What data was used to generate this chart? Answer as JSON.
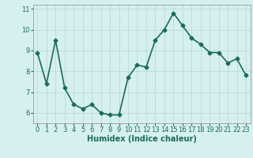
{
  "x": [
    0,
    1,
    2,
    3,
    4,
    5,
    6,
    7,
    8,
    9,
    10,
    11,
    12,
    13,
    14,
    15,
    16,
    17,
    18,
    19,
    20,
    21,
    22,
    23
  ],
  "y": [
    8.9,
    7.4,
    9.5,
    7.2,
    6.4,
    6.2,
    6.4,
    6.0,
    5.9,
    5.9,
    7.7,
    8.3,
    8.2,
    9.5,
    10.0,
    10.8,
    10.2,
    9.6,
    9.3,
    8.9,
    8.9,
    8.4,
    8.6,
    7.8
  ],
  "line_color": "#1a6b5a",
  "marker": "D",
  "marker_size": 2.5,
  "bg_color": "#d6f0ef",
  "grid_color": "#b8dbd9",
  "xlabel": "Humidex (Indice chaleur)",
  "ylim": [
    5.5,
    11.2
  ],
  "xlim": [
    -0.5,
    23.5
  ],
  "yticks": [
    6,
    7,
    8,
    9,
    10,
    11
  ],
  "xticks": [
    0,
    1,
    2,
    3,
    4,
    5,
    6,
    7,
    8,
    9,
    10,
    11,
    12,
    13,
    14,
    15,
    16,
    17,
    18,
    19,
    20,
    21,
    22,
    23
  ],
  "xlabel_fontsize": 7,
  "tick_fontsize": 6,
  "linewidth": 1.2
}
